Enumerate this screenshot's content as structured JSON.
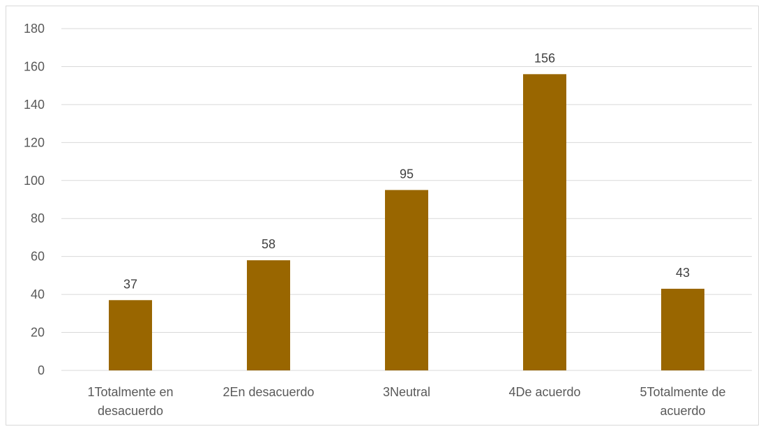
{
  "chart_data": {
    "type": "bar",
    "categories": [
      [
        "1Totalmente en",
        "desacuerdo"
      ],
      [
        "2En desacuerdo"
      ],
      [
        "3Neutral"
      ],
      [
        "4De acuerdo"
      ],
      [
        "5Totalmente de",
        "acuerdo"
      ]
    ],
    "values": [
      37,
      58,
      95,
      156,
      43
    ],
    "data_labels": [
      "37",
      "58",
      "95",
      "156",
      "43"
    ],
    "ylim": [
      0,
      180
    ],
    "y_ticks": [
      0,
      20,
      40,
      60,
      80,
      100,
      120,
      140,
      160,
      180
    ],
    "title": "",
    "xlabel": "",
    "ylabel": "",
    "grid": true,
    "legend": "none",
    "bar_color": "#996600",
    "gridline_color": "#d9d9d9"
  }
}
